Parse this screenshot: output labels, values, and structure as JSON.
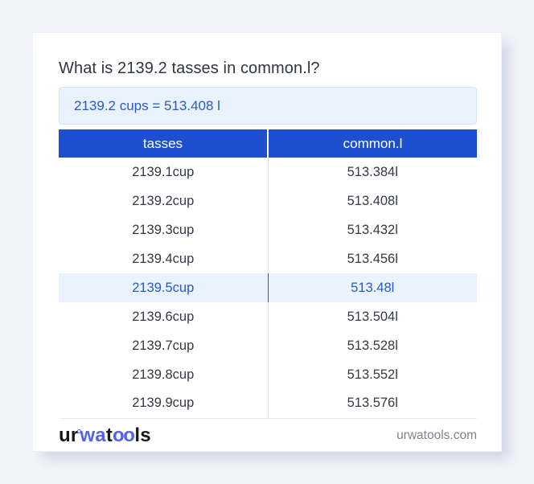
{
  "header": {
    "question": "What is 2139.2 tasses in common.l?",
    "result": "2139.2 cups = 513.408 l"
  },
  "table": {
    "headers": [
      "tasses",
      "common.l"
    ],
    "rows": [
      {
        "cells": [
          "2139.1cup",
          "513.384l"
        ],
        "highlight": false
      },
      {
        "cells": [
          "2139.2cup",
          "513.408l"
        ],
        "highlight": false
      },
      {
        "cells": [
          "2139.3cup",
          "513.432l"
        ],
        "highlight": false
      },
      {
        "cells": [
          "2139.4cup",
          "513.456l"
        ],
        "highlight": false
      },
      {
        "cells": [
          "2139.5cup",
          "513.48l"
        ],
        "highlight": true
      },
      {
        "cells": [
          "2139.6cup",
          "513.504l"
        ],
        "highlight": false
      },
      {
        "cells": [
          "2139.7cup",
          "513.528l"
        ],
        "highlight": false
      },
      {
        "cells": [
          "2139.8cup",
          "513.552l"
        ],
        "highlight": false
      },
      {
        "cells": [
          "2139.9cup",
          "513.576l"
        ],
        "highlight": false
      }
    ]
  },
  "footer": {
    "logo_parts": [
      "ur",
      "wa",
      "t",
      "oo",
      "ls"
    ],
    "domain": "urwatools.com"
  },
  "colors": {
    "page_background": "#f2f4f9",
    "card_background": "#ffffff",
    "header_blue": "#1d4fd1",
    "accent_blue_text": "#2a5ac4",
    "highlight_background": "#e9f2fd",
    "logo_blue": "#5261ef",
    "body_text": "#333945",
    "muted_text": "#7d838e"
  }
}
